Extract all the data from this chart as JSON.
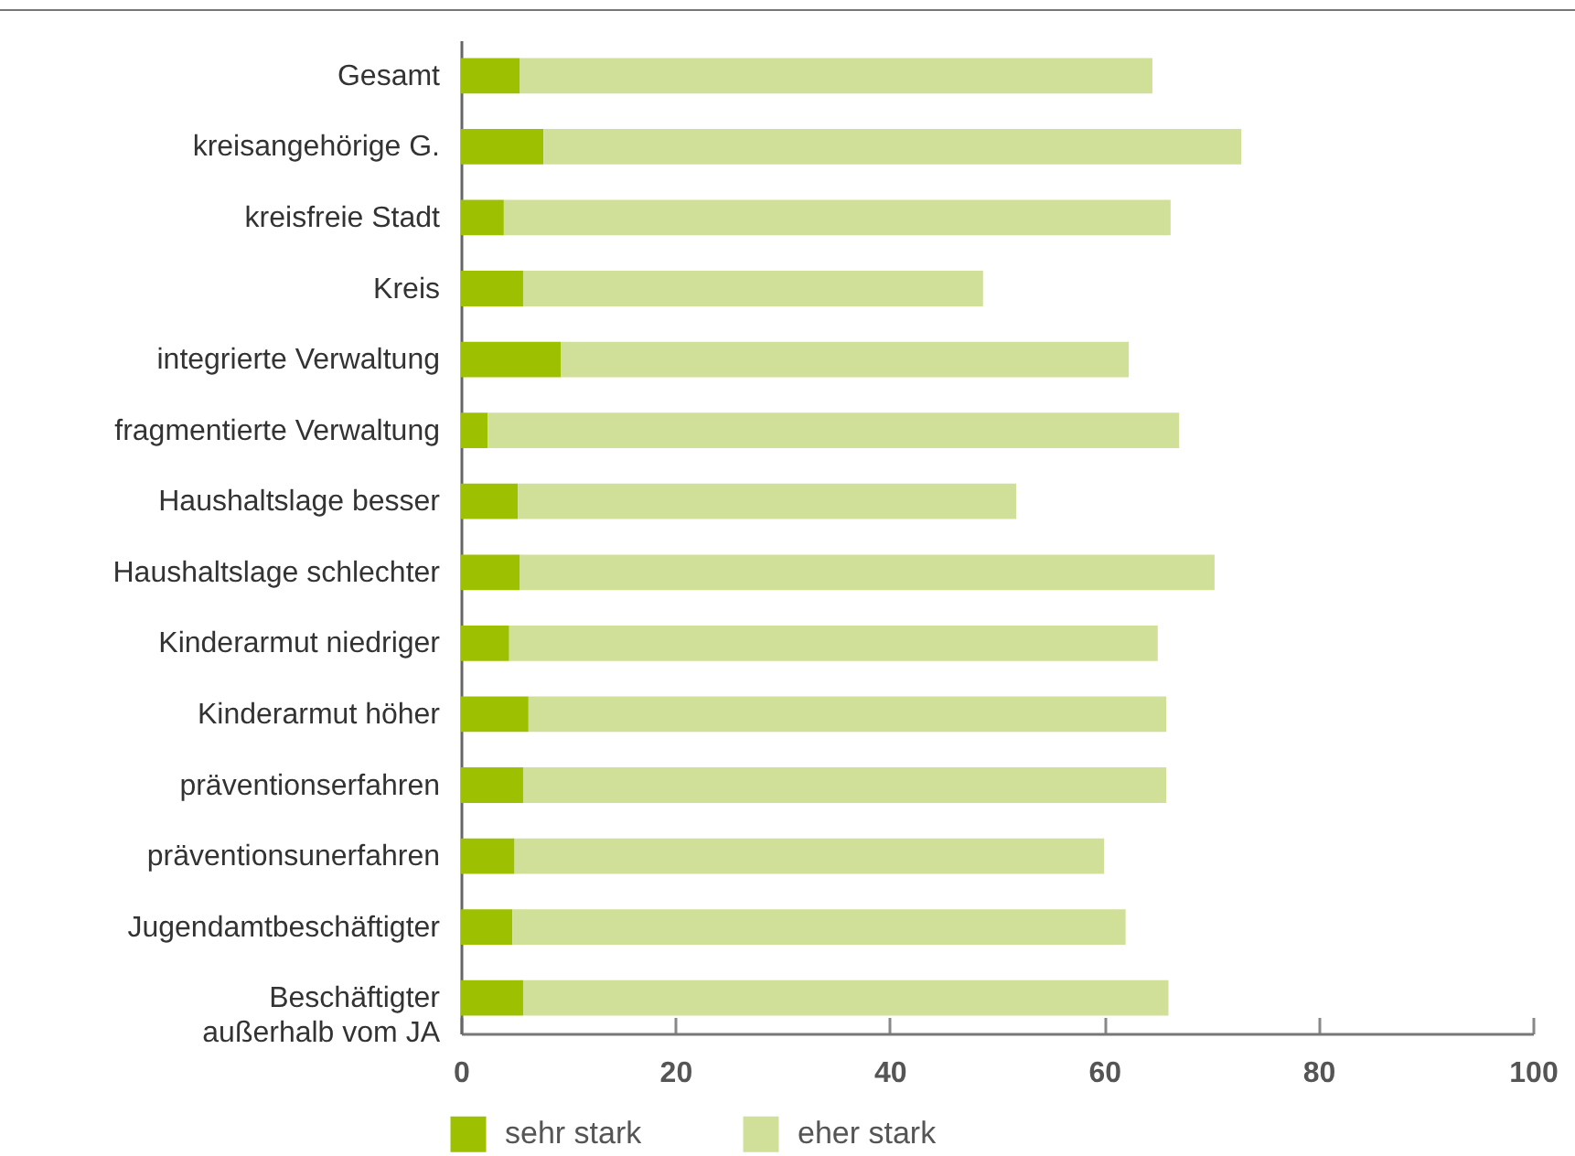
{
  "chart_data": {
    "type": "bar",
    "orientation": "horizontal",
    "stacked": true,
    "categories": [
      "Gesamt",
      "kreisangehörige G.",
      "kreisfreie Stadt",
      "Kreis",
      "integrierte Verwaltung",
      "fragmentierte Verwaltung",
      "Haushaltslage besser",
      "Haushaltslage schlechter",
      "Kinderarmut niedriger",
      "Kinderarmut höher",
      "präventionserfahren",
      "präventionsunerfahren",
      "Jugendamtbeschäftigter",
      "Beschäftigter\naußerhalb vom JA"
    ],
    "series": [
      {
        "name": "sehr stark",
        "color": "#9dc100",
        "values": [
          5.5,
          7.7,
          4.0,
          5.8,
          9.3,
          2.5,
          5.3,
          5.5,
          4.5,
          6.3,
          5.8,
          5.0,
          4.8,
          5.8
        ]
      },
      {
        "name": "eher stark",
        "color": "#d0e098",
        "values": [
          59.0,
          65.1,
          62.2,
          42.9,
          53.0,
          64.5,
          46.5,
          64.8,
          60.5,
          59.5,
          60.0,
          55.0,
          57.2,
          60.2
        ]
      }
    ],
    "xlim": [
      0,
      100
    ],
    "xticks": [
      0,
      20,
      40,
      60,
      80,
      100
    ],
    "legend": "bottom left"
  }
}
